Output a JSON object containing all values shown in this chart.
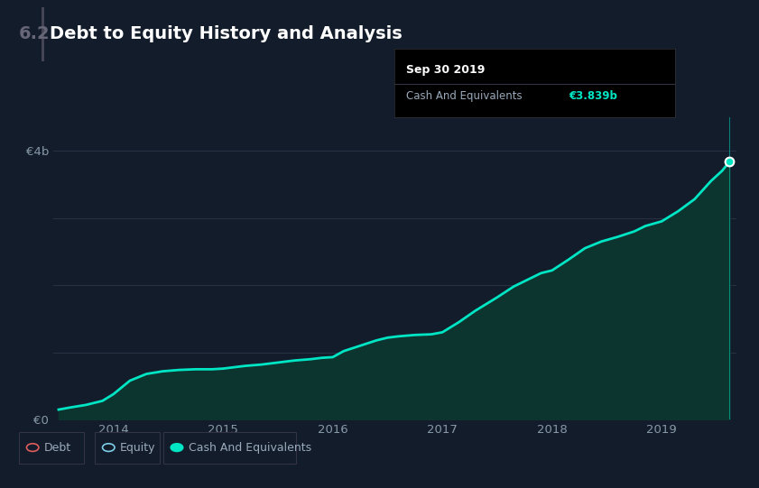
{
  "title": "Debt to Equity History and Analysis",
  "title_prefix": "6.2",
  "background_color": "#131c2b",
  "plot_bg_color": "#131c2b",
  "grid_color": "#2a3145",
  "line_color": "#00e5c4",
  "fill_color": "#0d3530",
  "ylabel_0": "€0",
  "ylabel_4b": "€4b",
  "x_ticks": [
    2014,
    2015,
    2016,
    2017,
    2018,
    2019
  ],
  "tooltip_title": "Sep 30 2019",
  "tooltip_label": "Cash And Equivalents",
  "tooltip_value": "€3.839b",
  "legend": [
    {
      "label": "Debt",
      "edge_color": "#e05c5c",
      "face_color": "none"
    },
    {
      "label": "Equity",
      "edge_color": "#7ecfea",
      "face_color": "none"
    },
    {
      "label": "Cash And Equivalents",
      "edge_color": "#00e5c4",
      "face_color": "#00e5c4"
    }
  ],
  "x_data": [
    2013.5,
    2013.6,
    2013.75,
    2013.9,
    2014.0,
    2014.15,
    2014.3,
    2014.45,
    2014.6,
    2014.75,
    2014.9,
    2015.0,
    2015.1,
    2015.2,
    2015.35,
    2015.5,
    2015.65,
    2015.8,
    2015.9,
    2016.0,
    2016.1,
    2016.25,
    2016.4,
    2016.5,
    2016.6,
    2016.75,
    2016.9,
    2017.0,
    2017.15,
    2017.3,
    2017.5,
    2017.65,
    2017.8,
    2017.9,
    2018.0,
    2018.15,
    2018.3,
    2018.45,
    2018.6,
    2018.75,
    2018.85,
    2019.0,
    2019.15,
    2019.3,
    2019.45,
    2019.55,
    2019.62
  ],
  "y_data": [
    0.15,
    0.18,
    0.22,
    0.28,
    0.38,
    0.58,
    0.68,
    0.72,
    0.74,
    0.75,
    0.75,
    0.76,
    0.78,
    0.8,
    0.82,
    0.85,
    0.88,
    0.9,
    0.92,
    0.93,
    1.02,
    1.1,
    1.18,
    1.22,
    1.24,
    1.26,
    1.27,
    1.3,
    1.45,
    1.62,
    1.82,
    1.98,
    2.1,
    2.18,
    2.22,
    2.38,
    2.55,
    2.65,
    2.72,
    2.8,
    2.88,
    2.95,
    3.1,
    3.28,
    3.55,
    3.7,
    3.839
  ],
  "xlim": [
    2013.45,
    2019.68
  ],
  "ylim": [
    0,
    4.5
  ],
  "fig_width": 8.41,
  "fig_height": 5.41,
  "dpi": 100
}
